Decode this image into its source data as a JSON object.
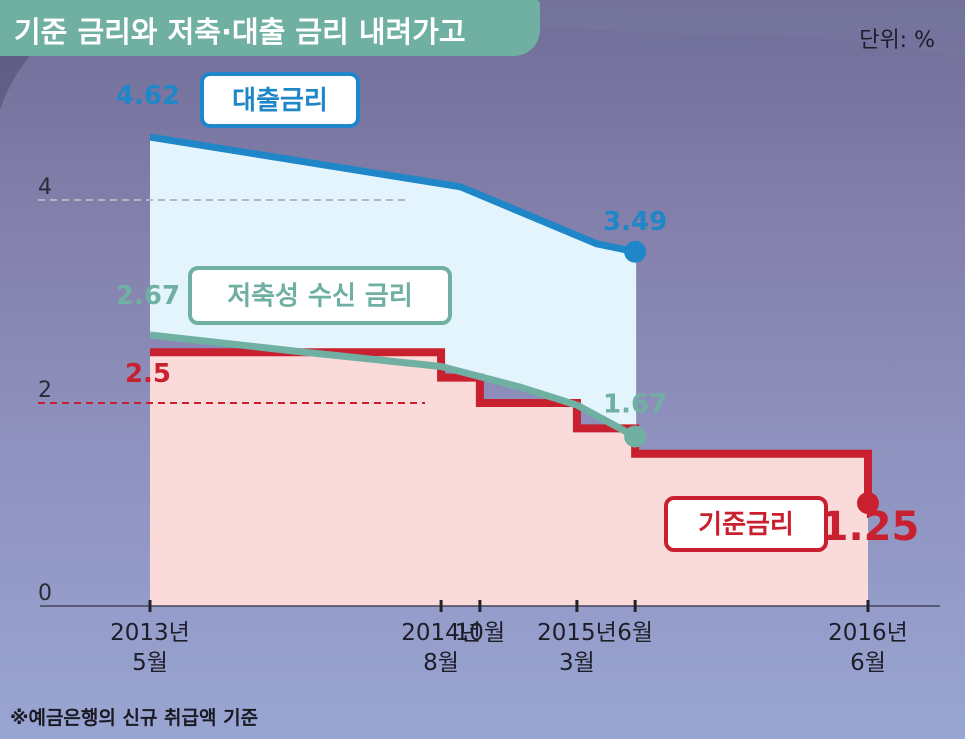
{
  "header": {
    "title": "기준 금리와 저축·대출 금리 내려가고",
    "unit": "단위: %"
  },
  "footnote": "※예금은행의 신규 취급액 기준",
  "colors": {
    "loan": "#1f86c8",
    "loan_fill": "#e3f4fc",
    "savings": "#6fb0a3",
    "base": "#c8202f",
    "base_fill": "#fbdada",
    "title_bg": "#6fb0a3"
  },
  "chart_data": {
    "type": "line",
    "ylim": [
      0,
      5
    ],
    "ylabel": "",
    "xlabel": "",
    "grid": false,
    "y_ticks": [
      "0",
      "2",
      "4"
    ],
    "x_ticks": [
      {
        "label": "2013년\n5월",
        "x": "2013-05"
      },
      {
        "label": "2014년\n8월",
        "x": "2014-08"
      },
      {
        "label": "10월",
        "x": "2014-10"
      },
      {
        "label": "2015년\n3월",
        "x": "2015-03"
      },
      {
        "label": "6월",
        "x": "2015-06"
      },
      {
        "label": "2016년\n6월",
        "x": "2016-06"
      }
    ],
    "series": [
      {
        "name": "대출금리",
        "kind": "line",
        "points": [
          [
            "2013-05",
            4.62
          ],
          [
            "2014-09",
            4.13
          ],
          [
            "2015-04",
            3.57
          ],
          [
            "2015-06",
            3.49
          ]
        ],
        "start_label": "4.62",
        "end_label": "3.49"
      },
      {
        "name": "저축성 수신 금리",
        "kind": "line",
        "points": [
          [
            "2013-05",
            2.67
          ],
          [
            "2014-01",
            2.5
          ],
          [
            "2014-08",
            2.36
          ],
          [
            "2014-12",
            2.16
          ],
          [
            "2015-03",
            1.98
          ],
          [
            "2015-06",
            1.67
          ]
        ],
        "start_label": "2.67",
        "end_label": "1.67"
      },
      {
        "name": "기준금리",
        "kind": "step",
        "points": [
          [
            "2013-05",
            2.5
          ],
          [
            "2014-08",
            2.25
          ],
          [
            "2014-10",
            2.0
          ],
          [
            "2015-03",
            1.75
          ],
          [
            "2015-06",
            1.5
          ],
          [
            "2016-06",
            1.25
          ]
        ],
        "start_label": "2.5",
        "end_label": "1.25"
      }
    ]
  }
}
